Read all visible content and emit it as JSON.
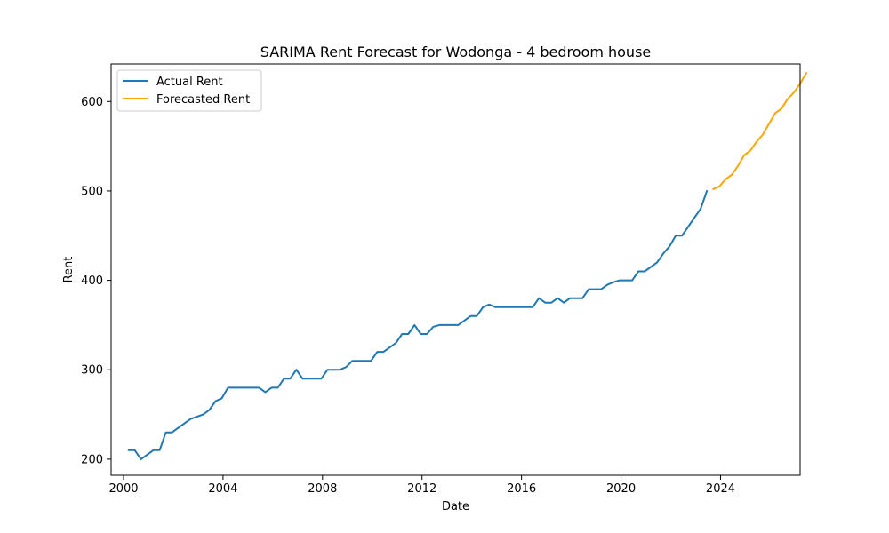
{
  "chart_data": {
    "type": "line",
    "title": "SARIMA Rent Forecast for Wodonga - 4 bedroom house",
    "xlabel": "Date",
    "ylabel": "Rent",
    "x_unit": "year",
    "xlim": [
      1999.5,
      2027.2
    ],
    "ylim": [
      182,
      642
    ],
    "xticks": [
      2000,
      2004,
      2008,
      2012,
      2016,
      2020,
      2024
    ],
    "yticks": [
      200,
      300,
      400,
      500,
      600
    ],
    "grid": false,
    "legend": "upper left",
    "series": [
      {
        "name": "Actual Rent",
        "color": "#1f77b4",
        "points": [
          [
            2000.2,
            210
          ],
          [
            2000.45,
            210
          ],
          [
            2000.7,
            200
          ],
          [
            2001.2,
            210
          ],
          [
            2001.45,
            210
          ],
          [
            2001.7,
            230
          ],
          [
            2001.95,
            230
          ],
          [
            2002.45,
            240
          ],
          [
            2002.7,
            245
          ],
          [
            2003.2,
            250
          ],
          [
            2003.45,
            255
          ],
          [
            2003.7,
            265
          ],
          [
            2003.95,
            268
          ],
          [
            2004.2,
            280
          ],
          [
            2004.45,
            280
          ],
          [
            2004.7,
            280
          ],
          [
            2004.95,
            280
          ],
          [
            2005.2,
            280
          ],
          [
            2005.45,
            280
          ],
          [
            2005.7,
            275
          ],
          [
            2005.95,
            280
          ],
          [
            2006.2,
            280
          ],
          [
            2006.45,
            290
          ],
          [
            2006.7,
            290
          ],
          [
            2006.95,
            300
          ],
          [
            2007.2,
            290
          ],
          [
            2007.45,
            290
          ],
          [
            2007.7,
            290
          ],
          [
            2007.95,
            290
          ],
          [
            2008.2,
            300
          ],
          [
            2008.45,
            300
          ],
          [
            2008.7,
            300
          ],
          [
            2008.95,
            303
          ],
          [
            2009.2,
            310
          ],
          [
            2009.45,
            310
          ],
          [
            2009.7,
            310
          ],
          [
            2009.95,
            310
          ],
          [
            2010.2,
            320
          ],
          [
            2010.45,
            320
          ],
          [
            2010.7,
            325
          ],
          [
            2010.95,
            330
          ],
          [
            2011.2,
            340
          ],
          [
            2011.45,
            340
          ],
          [
            2011.7,
            350
          ],
          [
            2011.95,
            340
          ],
          [
            2012.2,
            340
          ],
          [
            2012.45,
            348
          ],
          [
            2012.7,
            350
          ],
          [
            2012.95,
            350
          ],
          [
            2013.2,
            350
          ],
          [
            2013.45,
            350
          ],
          [
            2013.7,
            355
          ],
          [
            2013.95,
            360
          ],
          [
            2014.2,
            360
          ],
          [
            2014.45,
            370
          ],
          [
            2014.7,
            373
          ],
          [
            2014.95,
            370
          ],
          [
            2015.2,
            370
          ],
          [
            2015.45,
            370
          ],
          [
            2015.7,
            370
          ],
          [
            2015.95,
            370
          ],
          [
            2016.2,
            370
          ],
          [
            2016.45,
            370
          ],
          [
            2016.7,
            380
          ],
          [
            2016.95,
            375
          ],
          [
            2017.2,
            375
          ],
          [
            2017.45,
            380
          ],
          [
            2017.7,
            375
          ],
          [
            2017.95,
            380
          ],
          [
            2018.2,
            380
          ],
          [
            2018.45,
            380
          ],
          [
            2018.7,
            390
          ],
          [
            2018.95,
            390
          ],
          [
            2019.2,
            390
          ],
          [
            2019.45,
            395
          ],
          [
            2019.7,
            398
          ],
          [
            2019.95,
            400
          ],
          [
            2020.2,
            400
          ],
          [
            2020.45,
            400
          ],
          [
            2020.7,
            410
          ],
          [
            2020.95,
            410
          ],
          [
            2021.2,
            415
          ],
          [
            2021.45,
            420
          ],
          [
            2021.7,
            430
          ],
          [
            2021.95,
            438
          ],
          [
            2022.2,
            450
          ],
          [
            2022.45,
            450
          ],
          [
            2022.7,
            460
          ],
          [
            2022.95,
            470
          ],
          [
            2023.2,
            480
          ],
          [
            2023.45,
            500
          ]
        ]
      },
      {
        "name": "Forecasted Rent",
        "color": "#ffa500",
        "points": [
          [
            2023.7,
            502
          ],
          [
            2023.95,
            505
          ],
          [
            2024.2,
            513
          ],
          [
            2024.45,
            518
          ],
          [
            2024.7,
            528
          ],
          [
            2024.95,
            540
          ],
          [
            2025.2,
            545
          ],
          [
            2025.45,
            555
          ],
          [
            2025.7,
            563
          ],
          [
            2025.95,
            575
          ],
          [
            2026.2,
            587
          ],
          [
            2026.45,
            592
          ],
          [
            2026.7,
            603
          ],
          [
            2026.95,
            610
          ],
          [
            2027.2,
            620
          ],
          [
            2027.45,
            632
          ]
        ]
      }
    ]
  }
}
